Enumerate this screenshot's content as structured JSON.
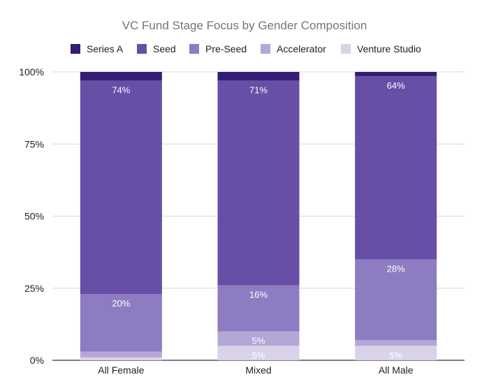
{
  "chart_data": {
    "type": "bar",
    "stacked": true,
    "title": "VC Fund Stage Focus by Gender Composition",
    "categories": [
      "All Female",
      "Mixed",
      "All Male"
    ],
    "series": [
      {
        "name": "Venture Studio",
        "color": "#d9d2e9",
        "values": [
          1,
          5,
          5
        ],
        "labels": [
          "",
          "5%",
          "5%"
        ]
      },
      {
        "name": "Accelerator",
        "color": "#b4a7d6",
        "values": [
          2,
          5,
          2
        ],
        "labels": [
          "",
          "5%",
          ""
        ]
      },
      {
        "name": "Pre-Seed",
        "color": "#8e7cc3",
        "values": [
          20,
          16,
          28
        ],
        "labels": [
          "20%",
          "16%",
          "28%"
        ]
      },
      {
        "name": "Seed",
        "color": "#674ea7",
        "values": [
          74,
          71,
          63.5
        ],
        "labels": [
          "74%",
          "71%",
          "64%"
        ]
      },
      {
        "name": "Series A",
        "color": "#351c75",
        "values": [
          3,
          3,
          1.5
        ],
        "labels": [
          "",
          "",
          ""
        ]
      }
    ],
    "legend_order": [
      "Series A",
      "Seed",
      "Pre-Seed",
      "Accelerator",
      "Venture Studio"
    ],
    "y_ticks": [
      "0%",
      "25%",
      "50%",
      "75%",
      "100%"
    ],
    "ylim": [
      0,
      100
    ],
    "grid": true,
    "legend_position": "top"
  }
}
